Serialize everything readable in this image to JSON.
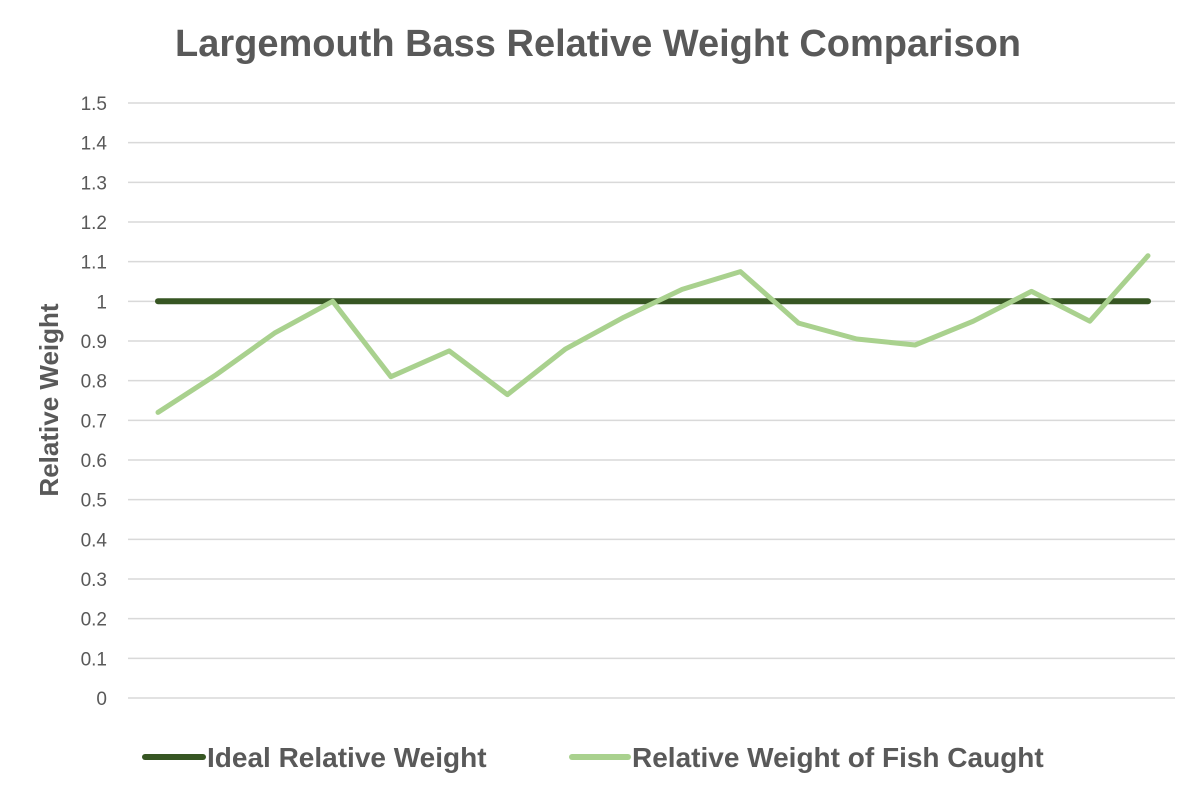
{
  "chart_data": {
    "type": "line",
    "title": "Largemouth Bass Relative Weight Comparison",
    "xlabel": "",
    "ylabel": "Relative Weight",
    "ylim": [
      0,
      1.5
    ],
    "yticks": [
      "0",
      "0.1",
      "0.2",
      "0.3",
      "0.4",
      "0.5",
      "0.6",
      "0.7",
      "0.8",
      "0.9",
      "1",
      "1.1",
      "1.2",
      "1.3",
      "1.4",
      "1.5"
    ],
    "grid": true,
    "legend_position": "bottom",
    "series": [
      {
        "name": "Ideal Relative Weight",
        "color": "#375623",
        "values": [
          1,
          1,
          1,
          1,
          1,
          1,
          1,
          1,
          1,
          1,
          1,
          1,
          1,
          1,
          1,
          1,
          1,
          1
        ]
      },
      {
        "name": "Relative Weight of Fish Caught",
        "color": "#a9d18e",
        "values": [
          0.72,
          0.815,
          0.92,
          1.0,
          0.81,
          0.875,
          0.765,
          0.88,
          0.96,
          1.03,
          1.075,
          0.945,
          0.905,
          0.89,
          0.95,
          1.025,
          0.95,
          1.115
        ]
      }
    ]
  }
}
